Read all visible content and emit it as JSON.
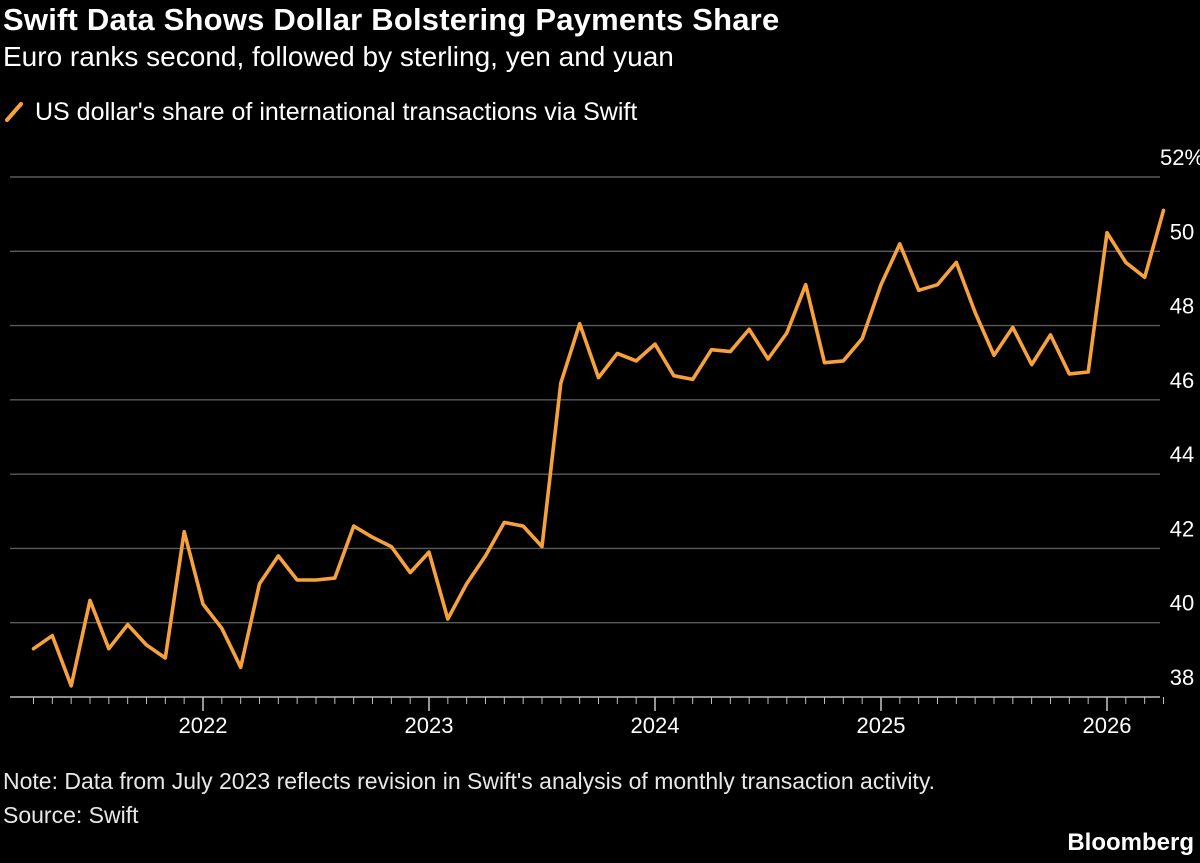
{
  "colors": {
    "background": "#000000",
    "line": "#f7a13b",
    "grid": "#5a5a5a",
    "axis": "#bdbdbd",
    "text": "#ffffff"
  },
  "header": {
    "title": "Swift Data Shows Dollar Bolstering Payments Share",
    "subtitle": "Euro ranks second, followed by sterling, yen and yuan"
  },
  "footer": {
    "note": "Note: Data from July 2023 reflects revision in Swift's analysis of monthly transaction activity.",
    "source": "Source: Swift",
    "brand": "Bloomberg"
  },
  "chart_data": {
    "type": "line",
    "title": "Swift Data Shows Dollar Bolstering Payments Share",
    "subtitle": "Euro ranks second, followed by sterling, yen and yuan",
    "xlabel": "",
    "ylabel": "",
    "ylim": [
      38,
      52
    ],
    "xlim": [
      2021.25,
      2026.25
    ],
    "grid": true,
    "legend_position": "top-left",
    "y_ticks": [
      38,
      40,
      42,
      44,
      46,
      48,
      50,
      52
    ],
    "y_tick_labels": [
      "38",
      "40",
      "42",
      "44",
      "46",
      "48",
      "50",
      "52%"
    ],
    "x_ticks": [
      2022,
      2023,
      2024,
      2025,
      2026
    ],
    "x_tick_labels": [
      "2022",
      "2023",
      "2024",
      "2025",
      "2026"
    ],
    "series": [
      {
        "name": "US dollar's share of international transactions via Swift",
        "x": [
          2021.25,
          2021.333,
          2021.417,
          2021.5,
          2021.583,
          2021.667,
          2021.75,
          2021.833,
          2021.917,
          2022.0,
          2022.083,
          2022.167,
          2022.25,
          2022.333,
          2022.417,
          2022.5,
          2022.583,
          2022.667,
          2022.75,
          2022.833,
          2022.917,
          2023.0,
          2023.083,
          2023.167,
          2023.25,
          2023.333,
          2023.417,
          2023.5,
          2023.583,
          2023.667,
          2023.75,
          2023.833,
          2023.917,
          2024.0,
          2024.083,
          2024.167,
          2024.25,
          2024.333,
          2024.417,
          2024.5,
          2024.583,
          2024.667,
          2024.75,
          2024.833,
          2024.917,
          2025.0,
          2025.083,
          2025.167,
          2025.25,
          2025.333,
          2025.417,
          2025.5,
          2025.583,
          2025.667,
          2025.75,
          2025.833,
          2025.917,
          2026.0,
          2026.083,
          2026.167
        ],
        "values": [
          39.3,
          39.65,
          38.3,
          40.6,
          39.3,
          39.95,
          39.4,
          39.05,
          42.45,
          40.5,
          39.85,
          38.8,
          41.05,
          41.8,
          41.15,
          41.15,
          41.2,
          42.6,
          42.3,
          42.05,
          41.35,
          41.9,
          40.1,
          41.05,
          41.8,
          42.7,
          42.6,
          42.05,
          46.45,
          48.05,
          46.6,
          47.25,
          47.05,
          47.5,
          46.65,
          46.55,
          47.35,
          47.3,
          47.9,
          47.1,
          47.8,
          49.1,
          47.0,
          47.05,
          47.65,
          49.1,
          50.2,
          48.95,
          49.1,
          49.7,
          48.35,
          47.2,
          47.95,
          46.95,
          47.75,
          46.7,
          46.75,
          50.5,
          49.7,
          49.3
        ]
      }
    ],
    "last_point": {
      "x": 2026.25,
      "value": 51.1
    }
  }
}
